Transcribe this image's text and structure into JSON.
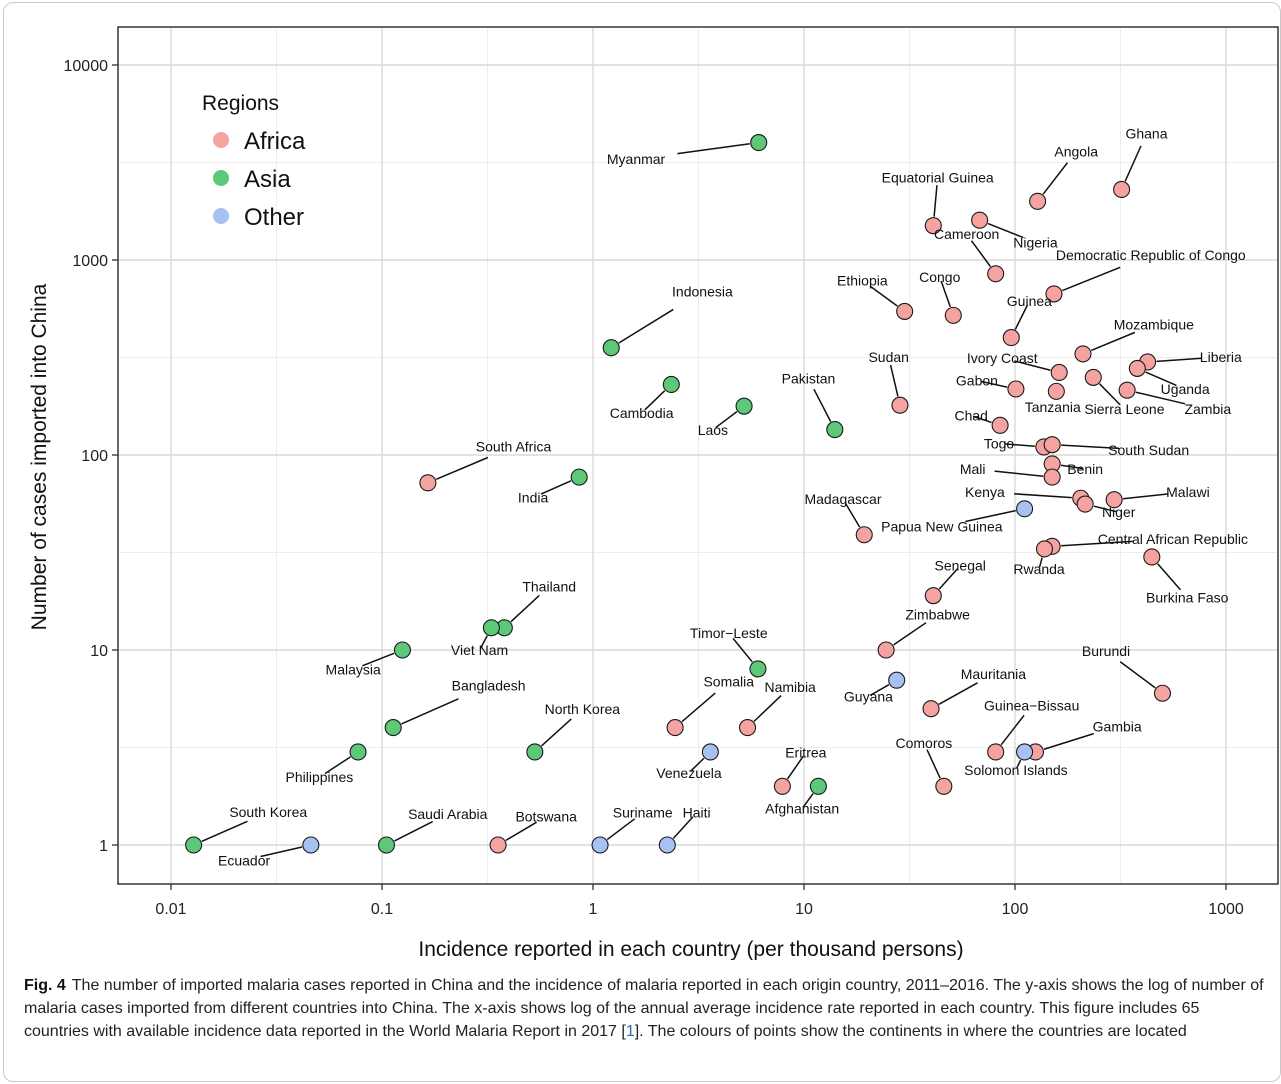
{
  "chart_data": {
    "type": "scatter",
    "title": "",
    "xlabel": "Incidence reported in each country (per thousand persons)",
    "ylabel": "Number of cases imported into China",
    "x_scale": "log",
    "y_scale": "log",
    "xlim": [
      0.0045,
      1300
    ],
    "ylim": [
      0.6,
      16000
    ],
    "x_ticks": [
      0.01,
      0.1,
      1,
      10,
      100,
      1000
    ],
    "x_tick_labels": [
      "0.01",
      "0.1",
      "1",
      "10",
      "100",
      "1000"
    ],
    "y_ticks": [
      1,
      10,
      100,
      1000,
      10000
    ],
    "y_tick_labels": [
      "1",
      "10",
      "100",
      "1000",
      "10000"
    ],
    "grid": true,
    "legend": {
      "title": "Regions",
      "position": "top-left",
      "entries": [
        {
          "name": "Africa",
          "color": "#f4a3a0"
        },
        {
          "name": "Asia",
          "color": "#5cc878"
        },
        {
          "name": "Other",
          "color": "#a7c1f2"
        }
      ]
    },
    "points": [
      {
        "label": "Myanmar",
        "region": "Asia",
        "x": 6.1,
        "y": 4000,
        "lx": 1.6,
        "ly": 3100,
        "anchor": "middle",
        "line": true
      },
      {
        "label": "Indonesia",
        "region": "Asia",
        "x": 1.22,
        "y": 355,
        "lx": 3.3,
        "ly": 650,
        "anchor": "middle",
        "line": true
      },
      {
        "label": "Cambodia",
        "region": "Asia",
        "x": 2.35,
        "y": 230,
        "lx": 1.7,
        "ly": 155,
        "anchor": "middle",
        "line": true
      },
      {
        "label": "Laos",
        "region": "Asia",
        "x": 5.2,
        "y": 178,
        "lx": 3.7,
        "ly": 127,
        "anchor": "middle",
        "line": true
      },
      {
        "label": "Pakistan",
        "region": "Asia",
        "x": 14,
        "y": 135,
        "lx": 10.5,
        "ly": 232,
        "anchor": "middle",
        "line": true
      },
      {
        "label": "India",
        "region": "Asia",
        "x": 0.86,
        "y": 77,
        "lx": 0.52,
        "ly": 57,
        "anchor": "middle",
        "line": true
      },
      {
        "label": "Thailand",
        "region": "Asia",
        "x": 0.38,
        "y": 13,
        "lx": 0.62,
        "ly": 20,
        "anchor": "middle",
        "line": true
      },
      {
        "label": "Viet Nam",
        "region": "Asia",
        "x": 0.33,
        "y": 13,
        "lx": 0.29,
        "ly": 9.4,
        "anchor": "middle",
        "line": true
      },
      {
        "label": "Malaysia",
        "region": "Asia",
        "x": 0.125,
        "y": 10,
        "lx": 0.073,
        "ly": 7.5,
        "anchor": "middle",
        "line": true
      },
      {
        "label": "Timor−Leste",
        "region": "Asia",
        "x": 6.05,
        "y": 8,
        "lx": 4.4,
        "ly": 11.5,
        "anchor": "middle",
        "line": true
      },
      {
        "label": "Bangladesh",
        "region": "Asia",
        "x": 0.113,
        "y": 4,
        "lx": 0.32,
        "ly": 6.2,
        "anchor": "middle",
        "line": true
      },
      {
        "label": "Philippines",
        "region": "Asia",
        "x": 0.077,
        "y": 3,
        "lx": 0.0505,
        "ly": 2.1,
        "anchor": "middle",
        "line": true
      },
      {
        "label": "North Korea",
        "region": "Asia",
        "x": 0.53,
        "y": 3,
        "lx": 0.89,
        "ly": 4.7,
        "anchor": "middle",
        "line": true
      },
      {
        "label": "Afghanistan",
        "region": "Asia",
        "x": 11.7,
        "y": 2,
        "lx": 9.8,
        "ly": 1.45,
        "anchor": "middle",
        "line": true
      },
      {
        "label": "South Korea",
        "region": "Asia",
        "x": 0.0128,
        "y": 1,
        "lx": 0.0289,
        "ly": 1.39,
        "anchor": "middle",
        "line": true
      },
      {
        "label": "Saudi Arabia",
        "region": "Asia",
        "x": 0.105,
        "y": 1,
        "lx": 0.205,
        "ly": 1.36,
        "anchor": "middle",
        "line": true
      },
      {
        "label": "Equatorial Guinea",
        "region": "Africa",
        "x": 41,
        "y": 1500,
        "lx": 43,
        "ly": 2500,
        "anchor": "middle",
        "line": true
      },
      {
        "label": "Angola",
        "region": "Africa",
        "x": 128,
        "y": 2000,
        "lx": 195,
        "ly": 3400,
        "anchor": "middle",
        "line": true
      },
      {
        "label": "Ghana",
        "region": "Africa",
        "x": 320,
        "y": 2300,
        "lx": 420,
        "ly": 4200,
        "anchor": "middle",
        "line": true
      },
      {
        "label": "Nigeria",
        "region": "Africa",
        "x": 68,
        "y": 1600,
        "lx": 125,
        "ly": 1160,
        "anchor": "middle",
        "line": true
      },
      {
        "label": "Cameroon",
        "region": "Africa",
        "x": 81,
        "y": 850,
        "lx": 59,
        "ly": 1280,
        "anchor": "middle",
        "line": true
      },
      {
        "label": "Democratic Republic of Congo",
        "region": "Africa",
        "x": 153,
        "y": 670,
        "lx": 440,
        "ly": 1000,
        "anchor": "middle",
        "line": true
      },
      {
        "label": "Ethiopia",
        "region": "Africa",
        "x": 30,
        "y": 545,
        "lx": 18.9,
        "ly": 740,
        "anchor": "middle",
        "line": true
      },
      {
        "label": "Congo",
        "region": "Africa",
        "x": 51,
        "y": 520,
        "lx": 44,
        "ly": 770,
        "anchor": "middle",
        "line": true
      },
      {
        "label": "Guinea",
        "region": "Africa",
        "x": 96,
        "y": 400,
        "lx": 117,
        "ly": 580,
        "anchor": "middle",
        "line": true
      },
      {
        "label": "Mozambique",
        "region": "Africa",
        "x": 210,
        "y": 330,
        "lx": 455,
        "ly": 440,
        "anchor": "middle",
        "line": true
      },
      {
        "label": "Liberia",
        "region": "Africa",
        "x": 425,
        "y": 300,
        "lx": 945,
        "ly": 300,
        "anchor": "middle",
        "line": true
      },
      {
        "label": "Uganda",
        "region": "Africa",
        "x": 380,
        "y": 278,
        "lx": 640,
        "ly": 205,
        "anchor": "middle",
        "line": true
      },
      {
        "label": "Ivory Coast",
        "region": "Africa",
        "x": 162,
        "y": 265,
        "lx": 87,
        "ly": 297,
        "anchor": "middle",
        "line": true
      },
      {
        "label": "Sierra Leone",
        "region": "Africa",
        "x": 235,
        "y": 250,
        "lx": 330,
        "ly": 162,
        "anchor": "middle",
        "line": true
      },
      {
        "label": "Zambia",
        "region": "Africa",
        "x": 340,
        "y": 215,
        "lx": 820,
        "ly": 162,
        "anchor": "middle",
        "line": true
      },
      {
        "label": "Gabon",
        "region": "Africa",
        "x": 101,
        "y": 218,
        "lx": 66,
        "ly": 227,
        "anchor": "middle",
        "line": true
      },
      {
        "label": "Tanzania",
        "region": "Africa",
        "x": 157,
        "y": 212,
        "lx": 151,
        "ly": 166,
        "anchor": "middle",
        "line": true
      },
      {
        "label": "Sudan",
        "region": "Africa",
        "x": 28.5,
        "y": 180,
        "lx": 25.2,
        "ly": 300,
        "anchor": "middle",
        "line": true
      },
      {
        "label": "Chad",
        "region": "Africa",
        "x": 85,
        "y": 142,
        "lx": 62,
        "ly": 150,
        "anchor": "middle",
        "line": true
      },
      {
        "label": "Togo",
        "region": "Africa",
        "x": 137,
        "y": 110,
        "lx": 84,
        "ly": 108,
        "anchor": "middle",
        "line": true
      },
      {
        "label": "South Sudan",
        "region": "Africa",
        "x": 150,
        "y": 113,
        "lx": 430,
        "ly": 100,
        "anchor": "middle",
        "line": true
      },
      {
        "label": "Benin",
        "region": "Africa",
        "x": 150,
        "y": 90,
        "lx": 215,
        "ly": 80,
        "anchor": "middle",
        "line": true
      },
      {
        "label": "Mali",
        "region": "Africa",
        "x": 150,
        "y": 77,
        "lx": 63,
        "ly": 80,
        "anchor": "middle",
        "line": true
      },
      {
        "label": "Kenya",
        "region": "Africa",
        "x": 205,
        "y": 60,
        "lx": 72,
        "ly": 61,
        "anchor": "middle",
        "line": true
      },
      {
        "label": "Niger",
        "region": "Africa",
        "x": 215,
        "y": 56,
        "lx": 310,
        "ly": 48,
        "anchor": "middle",
        "line": true
      },
      {
        "label": "Malawi",
        "region": "Africa",
        "x": 295,
        "y": 59,
        "lx": 660,
        "ly": 61,
        "anchor": "middle",
        "line": true
      },
      {
        "label": "Madagascar",
        "region": "Africa",
        "x": 19.3,
        "y": 39,
        "lx": 15.3,
        "ly": 56,
        "anchor": "middle",
        "line": true
      },
      {
        "label": "Central African Republic",
        "region": "Africa",
        "x": 150,
        "y": 34,
        "lx": 560,
        "ly": 35,
        "anchor": "middle",
        "line": true
      },
      {
        "label": "Rwanda",
        "region": "Africa",
        "x": 138,
        "y": 33,
        "lx": 130,
        "ly": 24.5,
        "anchor": "middle",
        "line": true
      },
      {
        "label": "Burkina Faso",
        "region": "Africa",
        "x": 445,
        "y": 30,
        "lx": 655,
        "ly": 17.5,
        "anchor": "middle",
        "line": true
      },
      {
        "label": "Senegal",
        "region": "Africa",
        "x": 41,
        "y": 19,
        "lx": 55,
        "ly": 25.5,
        "anchor": "middle",
        "line": true
      },
      {
        "label": "Zimbabwe",
        "region": "Africa",
        "x": 24.5,
        "y": 10,
        "lx": 43,
        "ly": 14.3,
        "anchor": "middle",
        "line": true
      },
      {
        "label": "Burundi",
        "region": "Africa",
        "x": 500,
        "y": 6,
        "lx": 270,
        "ly": 9.3,
        "anchor": "middle",
        "line": true
      },
      {
        "label": "Mauritania",
        "region": "Africa",
        "x": 40,
        "y": 5,
        "lx": 79,
        "ly": 7.1,
        "anchor": "middle",
        "line": true
      },
      {
        "label": "Somalia",
        "region": "Africa",
        "x": 2.45,
        "y": 4,
        "lx": 4.4,
        "ly": 6.5,
        "anchor": "middle",
        "line": true
      },
      {
        "label": "Namibia",
        "region": "Africa",
        "x": 5.4,
        "y": 4,
        "lx": 8.6,
        "ly": 6.1,
        "anchor": "middle",
        "line": true
      },
      {
        "label": "Guinea−Bissau",
        "region": "Africa",
        "x": 81,
        "y": 3,
        "lx": 120,
        "ly": 4.9,
        "anchor": "middle",
        "line": true
      },
      {
        "label": "Gambia",
        "region": "Africa",
        "x": 125,
        "y": 3,
        "lx": 305,
        "ly": 3.83,
        "anchor": "middle",
        "line": true
      },
      {
        "label": "Comoros",
        "region": "Africa",
        "x": 46,
        "y": 2,
        "lx": 37,
        "ly": 3.15,
        "anchor": "middle",
        "line": true
      },
      {
        "label": "Eritrea",
        "region": "Africa",
        "x": 7.9,
        "y": 2,
        "lx": 10.2,
        "ly": 2.81,
        "anchor": "middle",
        "line": true
      },
      {
        "label": "Botswana",
        "region": "Africa",
        "x": 0.355,
        "y": 1,
        "lx": 0.6,
        "ly": 1.32,
        "anchor": "middle",
        "line": true
      },
      {
        "label": "South Africa",
        "region": "Africa",
        "x": 0.165,
        "y": 72,
        "lx": 0.42,
        "ly": 104,
        "anchor": "middle",
        "line": true
      },
      {
        "label": "Papua New Guinea",
        "region": "Other",
        "x": 111,
        "y": 53,
        "lx": 45,
        "ly": 40.5,
        "anchor": "middle",
        "line": true
      },
      {
        "label": "Guyana",
        "region": "Other",
        "x": 27.5,
        "y": 7,
        "lx": 20.2,
        "ly": 5.45,
        "anchor": "middle",
        "line": true
      },
      {
        "label": "Venezuela",
        "region": "Other",
        "x": 3.6,
        "y": 3,
        "lx": 2.85,
        "ly": 2.21,
        "anchor": "middle",
        "line": true
      },
      {
        "label": "Solomon Islands",
        "region": "Other",
        "x": 111,
        "y": 3,
        "lx": 101,
        "ly": 2.29,
        "anchor": "middle",
        "line": true
      },
      {
        "label": "Ecuador",
        "region": "Other",
        "x": 0.046,
        "y": 1,
        "lx": 0.0222,
        "ly": 0.787,
        "anchor": "middle",
        "line": true
      },
      {
        "label": "Suriname",
        "region": "Other",
        "x": 1.08,
        "y": 1,
        "lx": 1.72,
        "ly": 1.38,
        "anchor": "middle",
        "line": true
      },
      {
        "label": "Haiti",
        "region": "Other",
        "x": 2.25,
        "y": 1,
        "lx": 3.1,
        "ly": 1.38,
        "anchor": "middle",
        "line": true
      }
    ]
  },
  "caption": {
    "fig_label": "Fig. 4",
    "text_before_cite": "The number of imported malaria cases reported in China and the incidence of malaria reported in each origin country, 2011–2016. The y-axis shows the log of number of malaria cases imported from different countries into China. The x-axis shows log of the annual average incidence rate reported in each country. This figure includes 65 countries with available incidence data reported in the World Malaria Report in 2017 [",
    "cite": "1",
    "text_after_cite": "]. The colours of points show the continents in where the countries are located"
  }
}
